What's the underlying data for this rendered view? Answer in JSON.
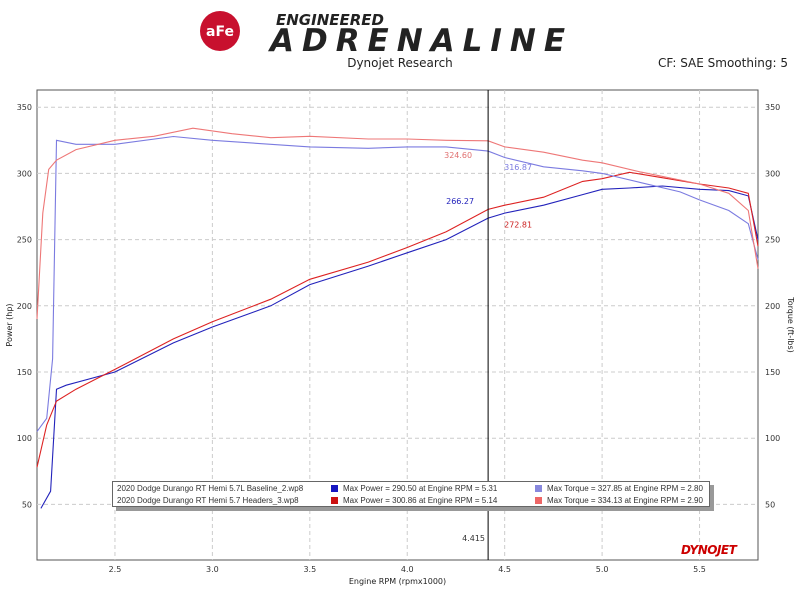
{
  "header": {
    "logo_text": "aFe POWER ENGINEERED ADRENALINE",
    "subtitle": "Dynojet Research",
    "correction": "CF: SAE Smoothing: 5",
    "watermark": "DYNOJET"
  },
  "chart_data": {
    "type": "line",
    "xlabel": "Engine RPM (rpmx1000)",
    "ylabel": "Power (hp)",
    "y2label": "Torque (ft-lbs)",
    "xlim": [
      2.1,
      5.8
    ],
    "ylim": [
      8,
      363
    ],
    "xticks": [
      "2.5",
      "3.0",
      "3.5",
      "4.0",
      "4.5",
      "5.0",
      "5.5"
    ],
    "yticks": [
      "50",
      "100",
      "150",
      "200",
      "250",
      "300",
      "350"
    ],
    "grid": true,
    "legend_placement": "bottom-center",
    "cursor": {
      "x": 4.415,
      "label": "4.415",
      "values": [
        "266.27",
        "272.81",
        "324.60",
        "316.87"
      ]
    },
    "series": [
      {
        "name": "Baseline Power",
        "color": "#2222bb",
        "x": [
          2.12,
          2.17,
          2.2,
          2.25,
          2.5,
          2.8,
          3.0,
          3.3,
          3.5,
          3.8,
          4.0,
          4.2,
          4.415,
          4.5,
          4.7,
          4.9,
          5.0,
          5.14,
          5.31,
          5.5,
          5.65,
          5.75,
          5.8
        ],
        "y": [
          47,
          60,
          137,
          140,
          150,
          172,
          184,
          200,
          216,
          230,
          240,
          250,
          266.27,
          270,
          276,
          284,
          288,
          289,
          290.5,
          288,
          287,
          283,
          250
        ]
      },
      {
        "name": "Headers Power",
        "color": "#dd2222",
        "x": [
          2.1,
          2.15,
          2.2,
          2.3,
          2.5,
          2.8,
          3.0,
          3.3,
          3.5,
          3.8,
          4.0,
          4.2,
          4.415,
          4.5,
          4.7,
          4.9,
          5.0,
          5.14,
          5.3,
          5.5,
          5.65,
          5.75,
          5.8
        ],
        "y": [
          78,
          110,
          128,
          137,
          152,
          175,
          188,
          205,
          220,
          233,
          244,
          256,
          272.81,
          276,
          282,
          294,
          296,
          300.86,
          297,
          292,
          289,
          285,
          245
        ]
      },
      {
        "name": "Baseline Torque",
        "color": "#7b7be0",
        "x": [
          2.1,
          2.15,
          2.18,
          2.2,
          2.3,
          2.5,
          2.8,
          3.0,
          3.3,
          3.5,
          3.8,
          4.0,
          4.2,
          4.415,
          4.5,
          4.7,
          4.9,
          5.0,
          5.2,
          5.4,
          5.5,
          5.65,
          5.75,
          5.8
        ],
        "y": [
          105,
          115,
          160,
          325,
          322,
          322,
          327.85,
          325,
          322,
          320,
          319,
          320,
          320,
          316.87,
          312,
          305,
          302,
          300,
          293,
          286,
          280,
          272,
          262,
          235
        ]
      },
      {
        "name": "Headers Torque",
        "color": "#ee7777",
        "x": [
          2.1,
          2.13,
          2.16,
          2.2,
          2.3,
          2.5,
          2.7,
          2.9,
          3.1,
          3.3,
          3.5,
          3.8,
          4.0,
          4.2,
          4.415,
          4.5,
          4.7,
          4.9,
          5.0,
          5.2,
          5.4,
          5.5,
          5.65,
          5.75,
          5.8
        ],
        "y": [
          190,
          270,
          303,
          310,
          318,
          325,
          328,
          334.13,
          330,
          327,
          328,
          326,
          326,
          325,
          324.6,
          320,
          316,
          310,
          308,
          301,
          295,
          292,
          285,
          272,
          228
        ]
      }
    ],
    "legend": [
      {
        "file": "2020 Dodge Durango RT Hemi 5.7L Baseline_2.wp8",
        "power": "Max Power = 290.50 at Engine RPM = 5.31",
        "torque": "Max Torque = 327.85 at Engine RPM = 2.80",
        "power_color": "#1515c0",
        "torque_color": "#8888dd"
      },
      {
        "file": "2020 Dodge Durango RT Hemi 5.7 Headers_3.wp8",
        "power": "Max Power = 300.86 at Engine RPM = 5.14",
        "torque": "Max Torque = 334.13 at Engine RPM = 2.90",
        "power_color": "#cc1111",
        "torque_color": "#ee6666"
      }
    ]
  }
}
